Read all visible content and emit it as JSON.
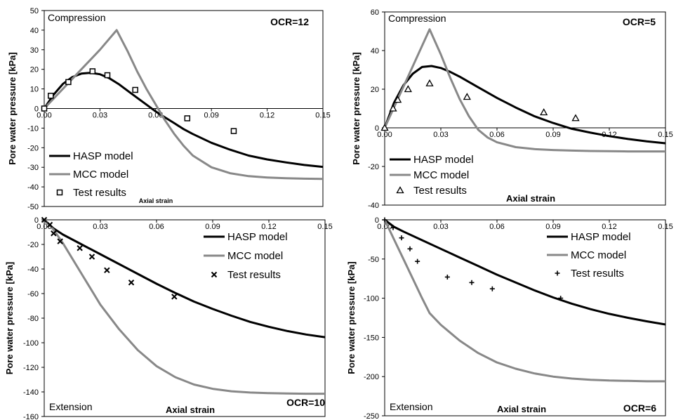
{
  "chart_data": [
    {
      "type": "line",
      "panel_label": "Compression",
      "ocr_label": "OCR=12",
      "xlabel": "Axial strain",
      "ylabel": "Pore water pressure [kPa]",
      "xlim": [
        0,
        0.15
      ],
      "ylim": [
        -50,
        50
      ],
      "xticks": [
        0.0,
        0.03,
        0.06,
        0.09,
        0.12,
        0.15
      ],
      "xtick_labels": [
        "0.00",
        "0.03",
        "0.06",
        "0.09",
        "0.12",
        "0.15"
      ],
      "yticks": [
        -50,
        -40,
        -30,
        -20,
        -10,
        0,
        10,
        20,
        30,
        40,
        50
      ],
      "ytick_labels": [
        "-50",
        "-40",
        "-30",
        "-20",
        "-10",
        "0",
        "10",
        "20",
        "30",
        "40",
        "50"
      ],
      "legend_position": "bottom-left",
      "series": [
        {
          "name": "HASP model",
          "kind": "line",
          "color": "#000000",
          "x": [
            0,
            0.005,
            0.01,
            0.015,
            0.02,
            0.025,
            0.03,
            0.035,
            0.04,
            0.045,
            0.05,
            0.055,
            0.06,
            0.065,
            0.07,
            0.075,
            0.08,
            0.09,
            0.1,
            0.11,
            0.12,
            0.13,
            0.14,
            0.15
          ],
          "y": [
            0,
            7,
            12.5,
            16,
            17.8,
            18.2,
            17.5,
            15.5,
            12.5,
            9,
            5.5,
            2,
            -1.5,
            -4.5,
            -7.5,
            -10.5,
            -13,
            -17.5,
            -21,
            -24,
            -26,
            -27.5,
            -28.8,
            -29.8
          ]
        },
        {
          "name": "MCC model",
          "kind": "line",
          "color": "#888888",
          "x": [
            0,
            0.01,
            0.02,
            0.03,
            0.039,
            0.045,
            0.05,
            0.055,
            0.06,
            0.065,
            0.07,
            0.075,
            0.08,
            0.09,
            0.1,
            0.11,
            0.12,
            0.13,
            0.14,
            0.15
          ],
          "y": [
            0,
            10,
            20,
            30,
            40,
            29,
            19,
            10,
            2,
            -6,
            -13,
            -19,
            -24,
            -30,
            -33,
            -34.5,
            -35.2,
            -35.6,
            -35.8,
            -35.9
          ]
        },
        {
          "name": "Test results",
          "kind": "scatter",
          "marker": "square",
          "color": "#000000",
          "x": [
            0,
            0.0035,
            0.013,
            0.026,
            0.034,
            0.049,
            0.077,
            0.102
          ],
          "y": [
            0,
            6.5,
            13.5,
            19,
            17,
            9.5,
            -5,
            -11.5
          ]
        }
      ]
    },
    {
      "type": "line",
      "panel_label": "Compression",
      "ocr_label": "OCR=5",
      "xlabel": "Axial strain",
      "ylabel": "Pore water pressure [kPa]",
      "xlim": [
        0,
        0.15
      ],
      "ylim": [
        -40,
        60
      ],
      "xticks": [
        0.0,
        0.03,
        0.06,
        0.09,
        0.12,
        0.15
      ],
      "xtick_labels": [
        "0.00",
        "0.03",
        "0.06",
        "0.09",
        "0.12",
        "0.15"
      ],
      "yticks": [
        -40,
        -20,
        0,
        20,
        40,
        60
      ],
      "ytick_labels": [
        "-40",
        "-20",
        "0",
        "20",
        "40",
        "60"
      ],
      "legend_position": "bottom-left",
      "series": [
        {
          "name": "HASP model",
          "kind": "line",
          "color": "#000000",
          "x": [
            0,
            0.005,
            0.01,
            0.015,
            0.02,
            0.025,
            0.03,
            0.035,
            0.04,
            0.05,
            0.06,
            0.07,
            0.08,
            0.09,
            0.1,
            0.11,
            0.12,
            0.13,
            0.14,
            0.15
          ],
          "y": [
            0,
            13,
            22,
            28,
            31.5,
            32,
            31,
            29,
            26.5,
            21,
            15.5,
            10.5,
            6,
            2.5,
            -0.5,
            -2.5,
            -4.3,
            -5.8,
            -7,
            -8
          ]
        },
        {
          "name": "MCC model",
          "kind": "line",
          "color": "#888888",
          "x": [
            0,
            0.008,
            0.016,
            0.024,
            0.03,
            0.035,
            0.04,
            0.045,
            0.05,
            0.055,
            0.06,
            0.07,
            0.08,
            0.09,
            0.1,
            0.11,
            0.12,
            0.13,
            0.14,
            0.15
          ],
          "y": [
            0,
            17,
            34,
            51,
            38,
            26,
            15,
            6,
            -1,
            -5,
            -7.5,
            -10,
            -11,
            -11.5,
            -11.8,
            -12,
            -12.1,
            -12.2,
            -12.2,
            -12.2
          ]
        },
        {
          "name": "Test results",
          "kind": "scatter",
          "marker": "triangle",
          "color": "#000000",
          "x": [
            0,
            0.0045,
            0.007,
            0.0125,
            0.024,
            0.044,
            0.085,
            0.102
          ],
          "y": [
            0,
            10,
            14.5,
            20,
            23,
            16,
            8,
            5
          ]
        }
      ]
    },
    {
      "type": "line",
      "panel_label": "Extension",
      "ocr_label": "OCR=10",
      "xlabel": "Axial strain",
      "ylabel": "Pore water pressure [kPa]",
      "xlim": [
        0,
        0.15
      ],
      "ylim": [
        -160,
        0
      ],
      "xticks": [
        0.0,
        0.03,
        0.06,
        0.09,
        0.12,
        0.15
      ],
      "xtick_labels": [
        "0.00",
        "0.03",
        "0.06",
        "0.09",
        "0.12",
        "0.15"
      ],
      "yticks": [
        -160,
        -140,
        -120,
        -100,
        -80,
        -60,
        -40,
        -20,
        0
      ],
      "ytick_labels": [
        "-160",
        "-140",
        "-120",
        "-100",
        "-80",
        "-60",
        "-40",
        "-20",
        "0"
      ],
      "legend_position": "top-right",
      "series": [
        {
          "name": "HASP model",
          "kind": "line",
          "color": "#000000",
          "x": [
            0,
            0.005,
            0.01,
            0.02,
            0.03,
            0.04,
            0.05,
            0.06,
            0.07,
            0.08,
            0.09,
            0.1,
            0.11,
            0.12,
            0.13,
            0.14,
            0.15
          ],
          "y": [
            0,
            -7,
            -12,
            -20,
            -28,
            -36,
            -44,
            -52,
            -59.5,
            -66.5,
            -72.5,
            -78,
            -83,
            -87,
            -90.5,
            -93.3,
            -95.5
          ]
        },
        {
          "name": "MCC model",
          "kind": "line",
          "color": "#888888",
          "x": [
            0,
            0.005,
            0.01,
            0.02,
            0.03,
            0.04,
            0.05,
            0.06,
            0.07,
            0.08,
            0.09,
            0.1,
            0.11,
            0.12,
            0.13,
            0.14,
            0.15
          ],
          "y": [
            0,
            -8,
            -19,
            -44,
            -69,
            -89,
            -106,
            -119,
            -128,
            -134,
            -137.5,
            -139.5,
            -140.5,
            -141,
            -141.3,
            -141.5,
            -141.5
          ]
        },
        {
          "name": "Test results",
          "kind": "scatter",
          "marker": "x",
          "color": "#000000",
          "x": [
            0,
            0.003,
            0.005,
            0.0085,
            0.019,
            0.0255,
            0.0335,
            0.0465,
            0.0695
          ],
          "y": [
            0,
            -4,
            -11,
            -17.5,
            -23,
            -30,
            -41,
            -51,
            -62.5
          ]
        }
      ]
    },
    {
      "type": "line",
      "panel_label": "Extension",
      "ocr_label": "OCR=6",
      "xlabel": "Axial strain",
      "ylabel": "Pore water pressure [kPa]",
      "xlim": [
        0,
        0.15
      ],
      "ylim": [
        -250,
        0
      ],
      "xticks": [
        0.0,
        0.03,
        0.06,
        0.09,
        0.12,
        0.15
      ],
      "xtick_labels": [
        "0.00",
        "0.03",
        "0.06",
        "0.09",
        "0.12",
        "0.15"
      ],
      "yticks": [
        -250,
        -200,
        -150,
        -100,
        -50,
        0
      ],
      "ytick_labels": [
        "-250",
        "-200",
        "-150",
        "-100",
        "-50",
        "0"
      ],
      "legend_position": "top-right",
      "series": [
        {
          "name": "HASP model",
          "kind": "line",
          "color": "#000000",
          "x": [
            0,
            0.005,
            0.01,
            0.02,
            0.03,
            0.04,
            0.05,
            0.06,
            0.07,
            0.08,
            0.09,
            0.1,
            0.11,
            0.12,
            0.13,
            0.14,
            0.15
          ],
          "y": [
            0,
            -9,
            -15,
            -26,
            -37,
            -48,
            -59,
            -70,
            -80,
            -90,
            -99,
            -107,
            -114,
            -120,
            -125,
            -129.5,
            -133.5
          ]
        },
        {
          "name": "MCC model",
          "kind": "line",
          "color": "#888888",
          "x": [
            0,
            0.005,
            0.01,
            0.015,
            0.02,
            0.024,
            0.03,
            0.04,
            0.05,
            0.06,
            0.07,
            0.08,
            0.09,
            0.1,
            0.11,
            0.12,
            0.13,
            0.14,
            0.15
          ],
          "y": [
            0,
            -25,
            -50,
            -75,
            -100,
            -119,
            -134,
            -154,
            -170,
            -182,
            -190,
            -196,
            -200,
            -202.5,
            -204,
            -205,
            -205.5,
            -206,
            -206
          ]
        },
        {
          "name": "Test results",
          "kind": "scatter",
          "marker": "plus",
          "color": "#000000",
          "x": [
            0,
            0.0045,
            0.009,
            0.0135,
            0.0175,
            0.0335,
            0.0465,
            0.0575,
            0.094
          ],
          "y": [
            0,
            -10,
            -23,
            -37,
            -53,
            -73,
            -80,
            -88,
            -100
          ]
        }
      ]
    }
  ]
}
